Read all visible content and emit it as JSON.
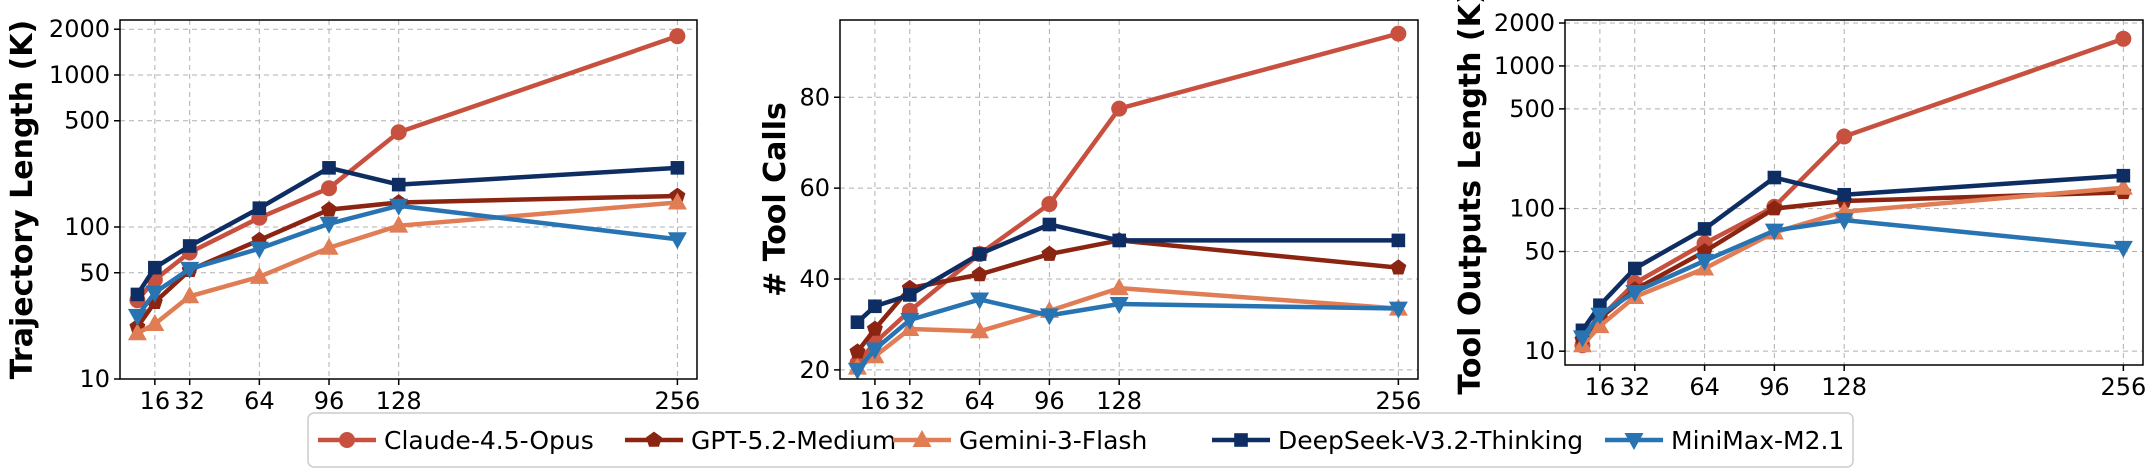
{
  "colors": {
    "claude": "#c8503f",
    "gpt": "#8b2410",
    "gemini": "#e07d55",
    "deepseek": "#0d2d63",
    "minimax": "#2874b2",
    "grid": "#b0b0b0",
    "axis": "#000000"
  },
  "legend": {
    "entries": [
      "Claude-4.5-Opus",
      "GPT-5.2-Medium",
      "Gemini-3-Flash",
      "DeepSeek-V3.2-Thinking",
      "MiniMax-M2.1"
    ],
    "markers": [
      "circle",
      "pentagon",
      "triangle-up",
      "square",
      "triangle-down"
    ],
    "placement": "bottom-center"
  },
  "chart_data": [
    {
      "type": "line",
      "title": "",
      "xlabel": "",
      "ylabel": "Trajectory Length (K)",
      "yscale": "log",
      "xlim": [
        0,
        265
      ],
      "ylim": [
        10,
        2300
      ],
      "x_ticks": [
        16,
        32,
        64,
        96,
        128,
        256
      ],
      "y_ticks": [
        10,
        50,
        100,
        500,
        1000,
        2000
      ],
      "grid": true,
      "x": [
        8,
        16,
        32,
        64,
        96,
        128,
        256
      ],
      "series": [
        {
          "name": "Claude-4.5-Opus",
          "values": [
            33,
            45,
            68,
            115,
            180,
            420,
            1800
          ]
        },
        {
          "name": "GPT-5.2-Medium",
          "values": [
            22,
            32,
            52,
            82,
            130,
            145,
            160
          ]
        },
        {
          "name": "Gemini-3-Flash",
          "values": [
            20,
            23,
            35,
            47,
            73,
            102,
            145
          ]
        },
        {
          "name": "DeepSeek-V3.2-Thinking",
          "values": [
            36,
            54,
            75,
            133,
            245,
            190,
            245
          ]
        },
        {
          "name": "MiniMax-M2.1",
          "values": [
            26,
            37,
            53,
            72,
            105,
            138,
            83
          ]
        }
      ]
    },
    {
      "type": "line",
      "title": "",
      "xlabel": "",
      "ylabel": "# Tool Calls",
      "yscale": "linear",
      "xlim": [
        0,
        265
      ],
      "ylim": [
        18,
        97
      ],
      "x_ticks": [
        16,
        32,
        64,
        96,
        128,
        256
      ],
      "y_ticks": [
        20,
        40,
        60,
        80
      ],
      "grid": true,
      "x": [
        8,
        16,
        32,
        64,
        96,
        128,
        256
      ],
      "series": [
        {
          "name": "Claude-4.5-Opus",
          "values": [
            21.5,
            26,
            33,
            45.5,
            56.5,
            77.5,
            94
          ]
        },
        {
          "name": "GPT-5.2-Medium",
          "values": [
            24,
            29,
            38,
            41,
            45.5,
            48.5,
            42.5
          ]
        },
        {
          "name": "Gemini-3-Flash",
          "values": [
            20.5,
            23,
            29,
            28.5,
            33,
            38,
            33.5
          ]
        },
        {
          "name": "DeepSeek-V3.2-Thinking",
          "values": [
            30.5,
            34,
            36.5,
            45.5,
            52,
            48.5,
            48.5
          ]
        },
        {
          "name": "MiniMax-M2.1",
          "values": [
            20,
            24.5,
            31,
            35.5,
            32,
            34.5,
            33.5
          ]
        }
      ]
    },
    {
      "type": "line",
      "title": "",
      "xlabel": "",
      "ylabel": "Tool Outputs Length (K)",
      "yscale": "log",
      "xlim": [
        0,
        265
      ],
      "ylim": [
        8,
        2100
      ],
      "x_ticks": [
        16,
        32,
        64,
        96,
        128,
        256
      ],
      "y_ticks": [
        10,
        50,
        100,
        500,
        1000,
        2000
      ],
      "grid": true,
      "x": [
        8,
        16,
        32,
        64,
        96,
        128,
        256
      ],
      "series": [
        {
          "name": "Claude-4.5-Opus",
          "values": [
            11,
            17,
            30,
            57,
            103,
            320,
            1550
          ]
        },
        {
          "name": "GPT-5.2-Medium",
          "values": [
            12,
            17,
            27,
            50,
            100,
            113,
            130
          ]
        },
        {
          "name": "Gemini-3-Flash",
          "values": [
            11,
            15,
            24,
            38,
            68,
            95,
            140
          ]
        },
        {
          "name": "DeepSeek-V3.2-Thinking",
          "values": [
            14,
            21,
            38,
            72,
            165,
            125,
            170
          ]
        },
        {
          "name": "MiniMax-M2.1",
          "values": [
            12.5,
            18,
            26,
            43,
            70,
            83,
            53
          ]
        }
      ]
    }
  ]
}
